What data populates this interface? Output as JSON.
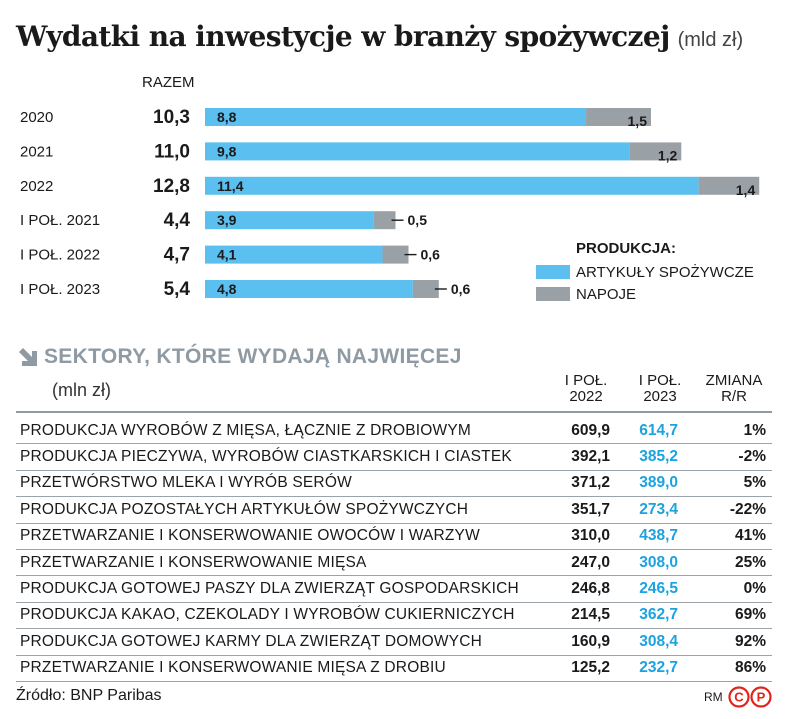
{
  "title": "Wydatki na inwestycje w branży spożywczej",
  "title_unit": "(mld zł)",
  "chart_data": {
    "type": "bar",
    "orientation": "horizontal",
    "stacked": true,
    "total_header": "RAZEM",
    "categories": [
      "2020",
      "2021",
      "2022",
      "I POŁ. 2021",
      "I POŁ. 2022",
      "I POŁ. 2023"
    ],
    "totals": [
      "10,3",
      "11,0",
      "12,8",
      "4,4",
      "4,7",
      "5,4"
    ],
    "series": [
      {
        "name": "ARTYKUŁY SPOŻYWCZE",
        "color": "#5bbfef",
        "values": [
          8.8,
          9.8,
          11.4,
          3.9,
          4.1,
          4.8
        ],
        "labels": [
          "8,8",
          "9,8",
          "11,4",
          "3,9",
          "4,1",
          "4,8"
        ]
      },
      {
        "name": "NAPOJE",
        "color": "#9aa1a6",
        "values": [
          1.5,
          1.2,
          1.4,
          0.5,
          0.6,
          0.6
        ],
        "labels": [
          "1,5",
          "1,2",
          "1,4",
          "0,5",
          "0,6",
          "0,6"
        ]
      }
    ],
    "legend_title": "PRODUKCJA:",
    "legend_position": "right"
  },
  "sectors": {
    "title": "SEKTORY, KTÓRE WYDAJĄ NAJWIĘCEJ",
    "unit": "(mln zł)",
    "arrow_icon": "arrow-down-right-icon",
    "col1": "I POŁ. 2022",
    "col2": "I POŁ. 2023",
    "col3": "ZMIANA R/R",
    "rows": [
      {
        "name": "PRODUKCJA WYROBÓW Z MIĘSA, ŁĄCZNIE Z DROBIOWYM",
        "v2022": "609,9",
        "v2023": "614,7",
        "change": "1%"
      },
      {
        "name": "PRODUKCJA PIECZYWA, WYROBÓW CIASTKARSKICH I CIASTEK",
        "v2022": "392,1",
        "v2023": "385,2",
        "change": "-2%"
      },
      {
        "name": "PRZETWÓRSTWO MLEKA I WYRÓB SERÓW",
        "v2022": "371,2",
        "v2023": "389,0",
        "change": "5%"
      },
      {
        "name": "PRODUKCJA POZOSTAŁYCH ARTYKUŁÓW SPOŻYWCZYCH",
        "v2022": "351,7",
        "v2023": "273,4",
        "change": "-22%"
      },
      {
        "name": "PRZETWARZANIE I KONSERWOWANIE OWOCÓW I WARZYW",
        "v2022": "310,0",
        "v2023": "438,7",
        "change": "41%"
      },
      {
        "name": "PRZETWARZANIE I KONSERWOWANIE MIĘSA",
        "v2022": "247,0",
        "v2023": "308,0",
        "change": "25%"
      },
      {
        "name": "PRODUKCJA GOTOWEJ PASZY DLA ZWIERZĄT GOSPODARSKICH",
        "v2022": "246,8",
        "v2023": "246,5",
        "change": "0%"
      },
      {
        "name": "PRODUKCJA KAKAO, CZEKOLADY I WYROBÓW CUKIERNICZYCH",
        "v2022": "214,5",
        "v2023": "362,7",
        "change": "69%"
      },
      {
        "name": "PRODUKCJA GOTOWEJ KARMY DLA ZWIERZĄT DOMOWYCH",
        "v2022": "160,9",
        "v2023": "308,4",
        "change": "92%"
      },
      {
        "name": "PRZETWARZANIE I KONSERWOWANIE MIĘSA Z DROBIU",
        "v2022": "125,2",
        "v2023": "232,7",
        "change": "86%"
      }
    ]
  },
  "source": "Źródło: BNP Paribas",
  "author": "RM",
  "logo": "cp-logo",
  "colors": {
    "food": "#5bbfef",
    "drinks": "#9aa1a6",
    "accent_blue": "#1aa3e0",
    "section_gray": "#8f9aa3"
  }
}
